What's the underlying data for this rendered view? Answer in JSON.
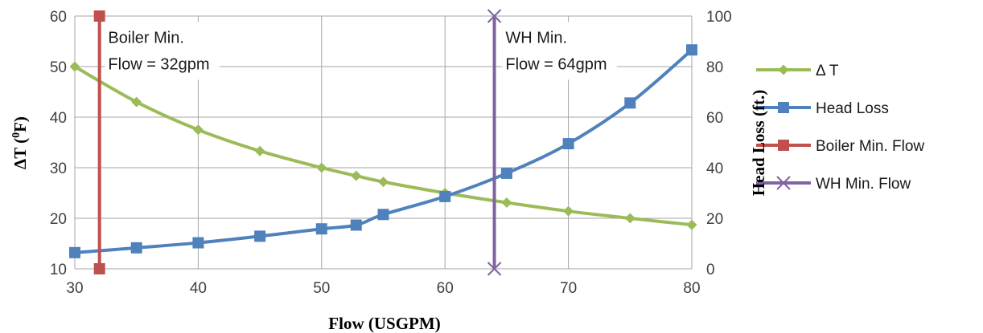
{
  "chart_data": {
    "type": "line",
    "xlabel": "Flow (USGPM)",
    "ylabel": "ΔT (",
    "ylabel_sup": "0",
    "ylabel_end": "F)",
    "y2label": "Head Loss (ft.)",
    "xlim": [
      30,
      80
    ],
    "ylim": [
      10,
      60
    ],
    "y2lim": [
      0,
      100
    ],
    "x_ticks": [
      "30",
      "40",
      "50",
      "60",
      "70",
      "80"
    ],
    "y_ticks": [
      "10",
      "20",
      "30",
      "40",
      "50",
      "60"
    ],
    "y2_ticks": [
      "0",
      "20",
      "40",
      "60",
      "80",
      "100"
    ],
    "grid": true,
    "legend_position": "right",
    "series": [
      {
        "name": "Δ T",
        "axis": "left",
        "color": "#9BBB59",
        "marker": "diamond",
        "x": [
          30,
          35,
          40,
          45,
          50,
          52.8,
          55,
          60,
          65,
          70,
          75,
          80
        ],
        "y": [
          50,
          43,
          37.5,
          33.3,
          30,
          28.4,
          27.2,
          25,
          23.1,
          21.4,
          20,
          18.7
        ]
      },
      {
        "name": "Head Loss",
        "axis": "right",
        "color": "#4F81BD",
        "marker": "square",
        "x": [
          30,
          35,
          40,
          45,
          50,
          52.8,
          55,
          60,
          65,
          70,
          75,
          80
        ],
        "y": [
          6.4,
          8.3,
          10.3,
          12.9,
          15.8,
          17.3,
          21.5,
          28.6,
          37.8,
          49.5,
          65.6,
          86.6
        ]
      },
      {
        "name": "Boiler Min. Flow",
        "axis": "left",
        "color": "#C0504D",
        "marker": "square",
        "x": [
          32,
          32
        ],
        "y": [
          60,
          10
        ]
      },
      {
        "name": "WH Min. Flow",
        "axis": "right",
        "color": "#8064A2",
        "marker": "x",
        "x": [
          64,
          64
        ],
        "y": [
          100,
          0
        ]
      }
    ],
    "annotations": [
      {
        "lines": [
          "Boiler Min.",
          "Flow = 32gpm"
        ],
        "x": 32.7,
        "y": 58.2
      },
      {
        "lines": [
          "WH Min.",
          "Flow = 64gpm"
        ],
        "x": 64.9,
        "y": 58.2
      }
    ]
  }
}
